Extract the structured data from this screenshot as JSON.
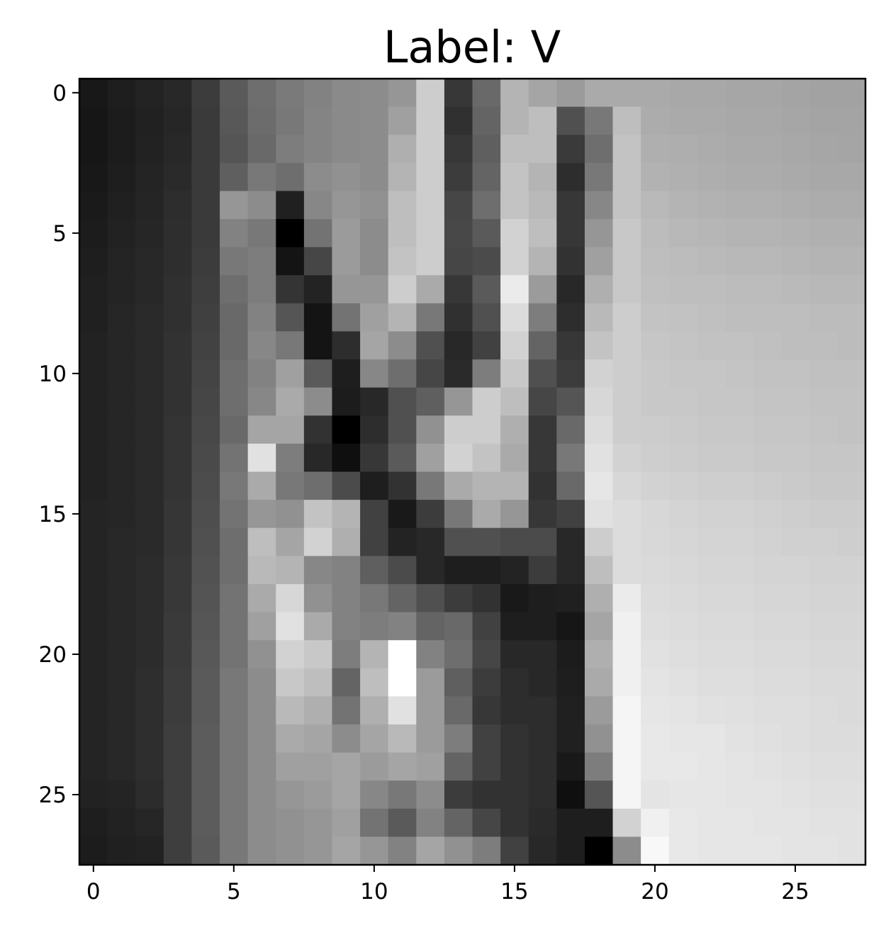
{
  "chart_data": {
    "type": "heatmap",
    "title": "Label: V",
    "xlabel": "",
    "ylabel": "",
    "colormap": "gray",
    "value_range": [
      0,
      255
    ],
    "xlim": [
      -0.5,
      27.5
    ],
    "ylim": [
      27.5,
      -0.5
    ],
    "x_ticks": [
      0,
      5,
      10,
      15,
      20,
      25
    ],
    "y_ticks": [
      0,
      5,
      10,
      15,
      20,
      25
    ],
    "x_tick_labels": [
      "0",
      "5",
      "10",
      "15",
      "20",
      "25"
    ],
    "y_tick_labels": [
      "0",
      "5",
      "10",
      "15",
      "20",
      "25"
    ],
    "grid": false,
    "values": [
      [
        24,
        30,
        35,
        40,
        60,
        90,
        110,
        122,
        130,
        138,
        140,
        150,
        205,
        55,
        105,
        180,
        165,
        155,
        170,
        170,
        170,
        168,
        168,
        166,
        166,
        164,
        162,
        162
      ],
      [
        22,
        28,
        33,
        38,
        58,
        88,
        108,
        120,
        132,
        138,
        140,
        160,
        205,
        48,
        100,
        180,
        190,
        80,
        120,
        190,
        172,
        170,
        170,
        168,
        168,
        166,
        164,
        164
      ],
      [
        22,
        28,
        34,
        40,
        58,
        85,
        105,
        125,
        132,
        138,
        140,
        175,
        205,
        55,
        95,
        190,
        190,
        58,
        110,
        195,
        175,
        174,
        172,
        170,
        170,
        168,
        166,
        165
      ],
      [
        24,
        30,
        36,
        42,
        58,
        95,
        120,
        110,
        140,
        145,
        140,
        180,
        205,
        60,
        100,
        195,
        180,
        45,
        120,
        195,
        178,
        176,
        174,
        172,
        172,
        170,
        168,
        168
      ],
      [
        26,
        32,
        37,
        45,
        58,
        150,
        140,
        32,
        135,
        150,
        145,
        190,
        205,
        70,
        110,
        195,
        185,
        55,
        135,
        195,
        185,
        180,
        178,
        176,
        176,
        174,
        172,
        172
      ],
      [
        28,
        34,
        38,
        46,
        58,
        130,
        120,
        0,
        115,
        155,
        140,
        190,
        205,
        72,
        90,
        210,
        190,
        55,
        150,
        200,
        188,
        184,
        182,
        180,
        180,
        178,
        176,
        176
      ],
      [
        30,
        36,
        40,
        46,
        60,
        120,
        125,
        20,
        70,
        155,
        140,
        195,
        205,
        70,
        75,
        210,
        180,
        50,
        160,
        200,
        190,
        188,
        186,
        184,
        184,
        182,
        180,
        180
      ],
      [
        32,
        36,
        40,
        48,
        62,
        110,
        125,
        52,
        35,
        150,
        150,
        205,
        170,
        55,
        90,
        235,
        155,
        40,
        175,
        200,
        192,
        190,
        190,
        188,
        188,
        186,
        184,
        184
      ],
      [
        32,
        38,
        42,
        48,
        64,
        105,
        130,
        85,
        20,
        115,
        160,
        180,
        120,
        48,
        80,
        220,
        125,
        45,
        185,
        205,
        195,
        194,
        192,
        190,
        190,
        190,
        188,
        188
      ],
      [
        34,
        38,
        42,
        50,
        66,
        105,
        135,
        120,
        20,
        45,
        165,
        140,
        80,
        40,
        65,
        210,
        100,
        55,
        195,
        205,
        198,
        196,
        194,
        194,
        192,
        190,
        190,
        188
      ],
      [
        34,
        38,
        42,
        50,
        68,
        110,
        130,
        160,
        90,
        30,
        135,
        110,
        70,
        42,
        125,
        200,
        80,
        60,
        210,
        205,
        200,
        198,
        198,
        196,
        194,
        194,
        192,
        192
      ],
      [
        34,
        38,
        42,
        50,
        70,
        110,
        135,
        170,
        140,
        28,
        40,
        80,
        95,
        150,
        205,
        190,
        70,
        85,
        215,
        205,
        200,
        200,
        198,
        198,
        196,
        196,
        194,
        194
      ],
      [
        34,
        38,
        42,
        52,
        72,
        105,
        165,
        165,
        50,
        0,
        45,
        80,
        145,
        205,
        205,
        175,
        55,
        105,
        220,
        205,
        204,
        202,
        200,
        200,
        198,
        198,
        196,
        194
      ],
      [
        34,
        38,
        42,
        52,
        74,
        115,
        225,
        125,
        40,
        15,
        55,
        90,
        160,
        210,
        195,
        170,
        55,
        120,
        225,
        210,
        206,
        204,
        202,
        202,
        200,
        200,
        198,
        198
      ],
      [
        34,
        38,
        42,
        52,
        76,
        120,
        170,
        120,
        110,
        75,
        30,
        50,
        120,
        170,
        180,
        180,
        50,
        105,
        230,
        215,
        210,
        208,
        206,
        206,
        204,
        202,
        200,
        200
      ],
      [
        36,
        38,
        42,
        54,
        78,
        115,
        150,
        145,
        195,
        180,
        65,
        25,
        60,
        120,
        170,
        150,
        55,
        65,
        225,
        220,
        215,
        212,
        210,
        210,
        208,
        206,
        204,
        204
      ],
      [
        36,
        40,
        42,
        54,
        80,
        110,
        190,
        165,
        210,
        175,
        65,
        35,
        40,
        80,
        80,
        75,
        75,
        40,
        205,
        220,
        216,
        214,
        212,
        212,
        210,
        208,
        208,
        206
      ],
      [
        36,
        40,
        44,
        56,
        82,
        110,
        185,
        180,
        135,
        130,
        95,
        75,
        40,
        30,
        30,
        35,
        60,
        40,
        190,
        220,
        218,
        216,
        214,
        214,
        212,
        212,
        210,
        210
      ],
      [
        36,
        40,
        44,
        56,
        84,
        115,
        170,
        215,
        145,
        130,
        120,
        100,
        80,
        60,
        50,
        25,
        30,
        32,
        175,
        235,
        220,
        218,
        216,
        216,
        214,
        214,
        212,
        212
      ],
      [
        36,
        40,
        44,
        58,
        86,
        115,
        160,
        225,
        170,
        130,
        125,
        130,
        100,
        105,
        65,
        30,
        30,
        22,
        165,
        240,
        222,
        220,
        218,
        218,
        216,
        216,
        214,
        214
      ],
      [
        36,
        40,
        44,
        58,
        88,
        115,
        145,
        210,
        200,
        125,
        180,
        255,
        130,
        110,
        70,
        40,
        40,
        28,
        175,
        240,
        225,
        222,
        220,
        220,
        218,
        218,
        216,
        216
      ],
      [
        36,
        40,
        46,
        60,
        90,
        120,
        140,
        200,
        190,
        100,
        190,
        255,
        155,
        95,
        60,
        45,
        40,
        30,
        170,
        240,
        228,
        225,
        222,
        222,
        220,
        220,
        218,
        218
      ],
      [
        36,
        40,
        46,
        60,
        90,
        120,
        140,
        185,
        175,
        115,
        175,
        225,
        155,
        105,
        55,
        45,
        45,
        32,
        155,
        245,
        230,
        228,
        225,
        224,
        222,
        222,
        220,
        218
      ],
      [
        36,
        40,
        46,
        62,
        92,
        120,
        140,
        170,
        165,
        140,
        165,
        185,
        155,
        125,
        65,
        50,
        45,
        32,
        145,
        245,
        232,
        230,
        230,
        226,
        224,
        222,
        220,
        220
      ],
      [
        36,
        40,
        46,
        62,
        92,
        120,
        140,
        160,
        160,
        165,
        155,
        165,
        160,
        100,
        65,
        50,
        45,
        25,
        125,
        245,
        232,
        232,
        230,
        228,
        226,
        224,
        222,
        222
      ],
      [
        34,
        36,
        44,
        62,
        92,
        120,
        140,
        150,
        155,
        165,
        135,
        120,
        140,
        60,
        50,
        50,
        45,
        15,
        85,
        245,
        228,
        230,
        230,
        228,
        228,
        226,
        224,
        224
      ],
      [
        30,
        34,
        38,
        62,
        92,
        120,
        140,
        145,
        150,
        160,
        115,
        90,
        130,
        100,
        70,
        50,
        42,
        30,
        30,
        210,
        240,
        232,
        230,
        230,
        228,
        228,
        226,
        226
      ],
      [
        28,
        32,
        34,
        62,
        90,
        120,
        140,
        145,
        150,
        165,
        150,
        130,
        165,
        145,
        125,
        65,
        40,
        30,
        0,
        140,
        248,
        232,
        230,
        230,
        230,
        228,
        228,
        226
      ]
    ]
  }
}
